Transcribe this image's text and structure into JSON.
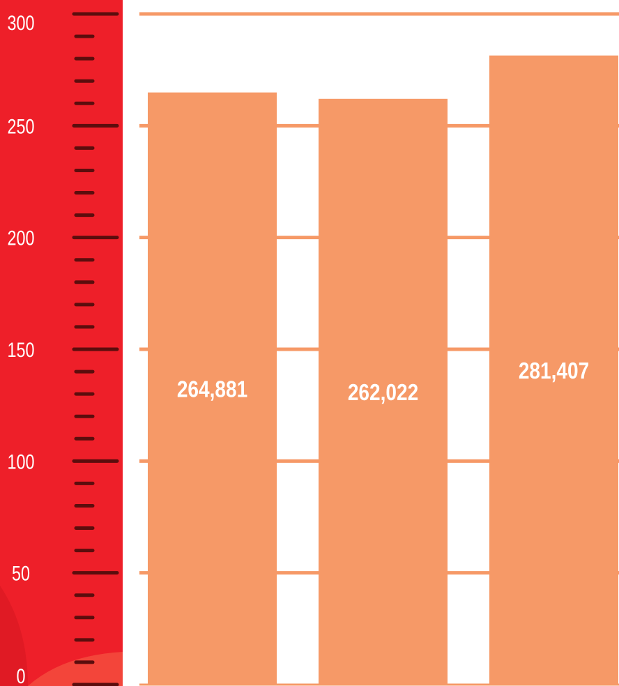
{
  "colors": {
    "ruler": "#ee1f29",
    "ruler_dark_blob": "#e01a24",
    "ruler_light_blob": "#f3453a",
    "tick_mark": "#5b0d0d",
    "bar": "#f69967",
    "grid": "#f69967",
    "axis_text": "#ffffff",
    "bar_text": "#ffffff"
  },
  "chart_data": {
    "type": "bar",
    "title": "",
    "xlabel": "",
    "ylabel": "",
    "ylim": [
      0,
      300
    ],
    "y_ticks": [
      "0",
      "50",
      "100",
      "150",
      "200",
      "250",
      "300"
    ],
    "grid": true,
    "categories": [
      "",
      "",
      ""
    ],
    "values": [
      264.881,
      262.022,
      281.407
    ],
    "value_labels": [
      "264,881",
      "262,022",
      "281,407"
    ]
  }
}
